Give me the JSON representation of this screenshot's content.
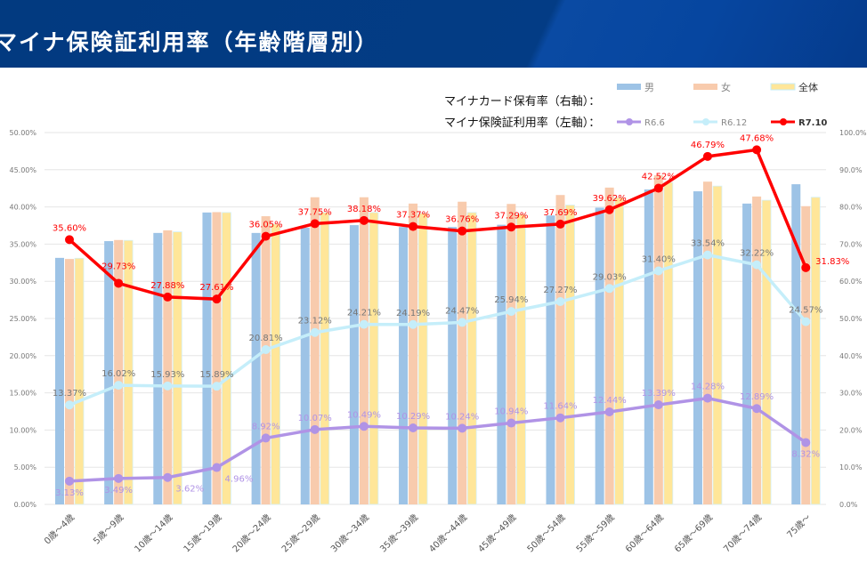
{
  "header": {
    "title": "マイナ保険証利用率（年齢階層別）"
  },
  "legend": {
    "card_label": "マイナカード保有率（右軸）：",
    "usage_label": "マイナ保険証利用率（左軸）："
  },
  "colors": {
    "male": "#9dc3e6",
    "female": "#f8cbad",
    "all": "#ffe699",
    "r66": "#b093e6",
    "r612": "#c5eefa",
    "r710": "#ff0000"
  },
  "chart_data": {
    "type": "bar+line",
    "title": "マイナ保険証利用率（年齢階層別）",
    "categories": [
      "0歳～4歳",
      "5歳～9歳",
      "10歳～14歳",
      "15歳～19歳",
      "20歳～24歳",
      "25歳～29歳",
      "30歳～34歳",
      "35歳～39歳",
      "40歳～44歳",
      "45歳～49歳",
      "50歳～54歳",
      "55歳～59歳",
      "60歳～64歳",
      "65歳～69歳",
      "70歳～74歳",
      "75歳～"
    ],
    "left_axis": {
      "range": [
        0,
        50
      ],
      "ticks": [
        "0.00%",
        "5.00%",
        "10.00%",
        "15.00%",
        "20.00%",
        "25.00%",
        "30.00%",
        "35.00%",
        "40.00%",
        "45.00%",
        "50.00%"
      ]
    },
    "right_axis": {
      "range": [
        0,
        100
      ],
      "ticks": [
        "0.0%",
        "10.0%",
        "20.0%",
        "30.0%",
        "40.0%",
        "50.0%",
        "60.0%",
        "70.0%",
        "80.0%",
        "90.0%",
        "100.0%"
      ]
    },
    "bar_series": [
      {
        "name": "男",
        "axis": "right",
        "values": [
          66.3,
          70.8,
          73.0,
          78.5,
          73.0,
          74.4,
          75.1,
          74.6,
          74.6,
          75.2,
          77.7,
          79.8,
          84.7,
          84.2,
          80.9,
          86.1
        ]
      },
      {
        "name": "女",
        "axis": "right",
        "values": [
          66.0,
          71.1,
          73.7,
          78.6,
          77.5,
          82.6,
          82.6,
          80.9,
          81.4,
          80.8,
          83.2,
          85.2,
          88.5,
          86.8,
          82.8,
          80.2
        ]
      },
      {
        "name": "全体",
        "axis": "right",
        "values": [
          66.2,
          71.0,
          73.3,
          78.5,
          75.4,
          78.5,
          78.5,
          78.3,
          78.5,
          78.0,
          80.5,
          82.5,
          86.6,
          85.6,
          81.8,
          82.6
        ]
      }
    ],
    "line_series": [
      {
        "name": "R6.6",
        "axis": "left",
        "values": [
          3.13,
          3.49,
          3.62,
          4.96,
          8.92,
          10.07,
          10.49,
          10.29,
          10.24,
          10.94,
          11.64,
          12.44,
          13.39,
          14.28,
          12.89,
          8.32
        ],
        "labels": [
          "3.13%",
          "3.49%",
          "3.62%",
          "4.96%",
          "8.92%",
          "10.07%",
          "10.49%",
          "10.29%",
          "10.24%",
          "10.94%",
          "11.64%",
          "12.44%",
          "13.39%",
          "14.28%",
          "12.89%",
          "8.32%"
        ]
      },
      {
        "name": "R6.12",
        "axis": "left",
        "values": [
          13.37,
          16.02,
          15.93,
          15.89,
          20.81,
          23.12,
          24.21,
          24.19,
          24.47,
          25.94,
          27.27,
          29.03,
          31.4,
          33.54,
          32.22,
          24.57
        ],
        "labels": [
          "13.37%",
          "16.02%",
          "15.93%",
          "15.89%",
          "20.81%",
          "23.12%",
          "24.21%",
          "24.19%",
          "24.47%",
          "25.94%",
          "27.27%",
          "29.03%",
          "31.40%",
          "33.54%",
          "32.22%",
          "24.57%"
        ]
      },
      {
        "name": "R7.10",
        "axis": "left",
        "values": [
          35.6,
          29.73,
          27.88,
          27.61,
          36.05,
          37.75,
          38.18,
          37.37,
          36.76,
          37.29,
          37.69,
          39.62,
          42.52,
          46.79,
          47.68,
          31.83
        ],
        "labels": [
          "35.60%",
          "29.73%",
          "27.88%",
          "27.61%",
          "36.05%",
          "37.75%",
          "38.18%",
          "37.37%",
          "36.76%",
          "37.29%",
          "37.69%",
          "39.62%",
          "42.52%",
          "46.79%",
          "47.68%",
          "31.83%"
        ]
      }
    ],
    "grid": true,
    "legend_position": "top-right"
  }
}
